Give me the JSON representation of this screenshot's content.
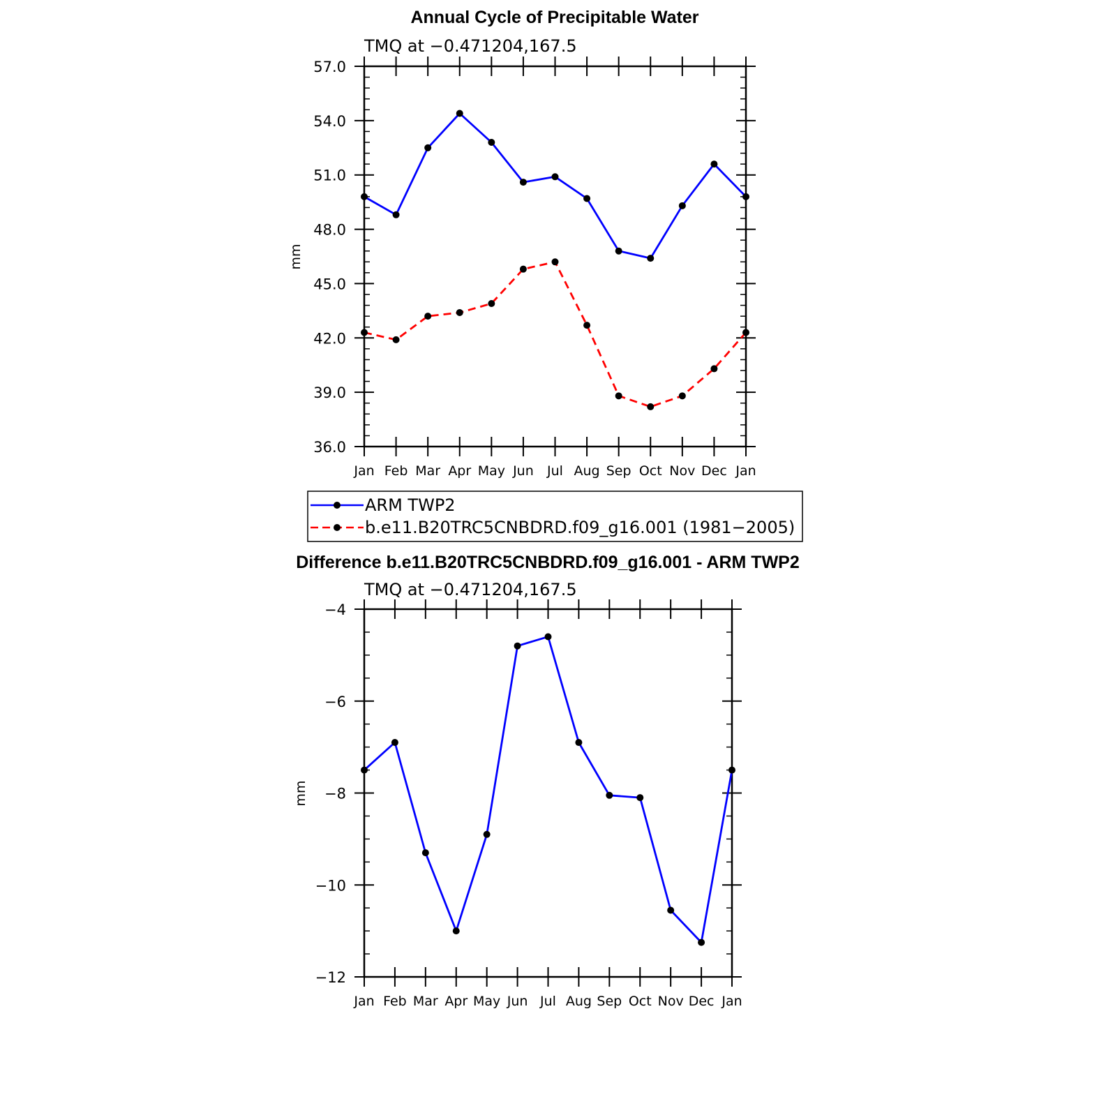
{
  "colors": {
    "ARM TWP2": "#0000ff",
    "model": "#ff0000",
    "marker": "#000000"
  },
  "chart_data": [
    {
      "type": "line",
      "title": "Annual Cycle of Precipitable Water",
      "subtitle": "TMQ at −0.471204,167.5",
      "ylabel": "mm",
      "ylim": [
        36.0,
        57.0
      ],
      "yticks": [
        "36.0",
        "39.0",
        "42.0",
        "45.0",
        "48.0",
        "51.0",
        "54.0",
        "57.0"
      ],
      "categories": [
        "Jan",
        "Feb",
        "Mar",
        "Apr",
        "May",
        "Jun",
        "Jul",
        "Aug",
        "Sep",
        "Oct",
        "Nov",
        "Dec",
        "Jan"
      ],
      "series": [
        {
          "name": "ARM TWP2",
          "style": "solid",
          "values": [
            49.8,
            48.8,
            52.5,
            54.4,
            52.8,
            50.6,
            50.9,
            49.7,
            46.8,
            46.4,
            49.3,
            51.6,
            49.8
          ]
        },
        {
          "name": "b.e11.B20TRC5CNBDRD.f09_g16.001 (1981−2005)",
          "style": "dashed",
          "values": [
            42.3,
            41.9,
            43.2,
            43.4,
            43.9,
            45.8,
            46.2,
            42.7,
            38.8,
            38.2,
            38.8,
            40.3,
            42.3
          ]
        }
      ],
      "legend": {
        "placement": "below"
      }
    },
    {
      "type": "line",
      "title": "Difference b.e11.B20TRC5CNBDRD.f09_g16.001 - ARM TWP2",
      "subtitle": "TMQ at −0.471204,167.5",
      "ylabel": "mm",
      "ylim": [
        -12,
        -4
      ],
      "yticks": [
        "−12",
        "−10",
        "−8",
        "−6",
        "−4"
      ],
      "categories": [
        "Jan",
        "Feb",
        "Mar",
        "Apr",
        "May",
        "Jun",
        "Jul",
        "Aug",
        "Sep",
        "Oct",
        "Nov",
        "Dec",
        "Jan"
      ],
      "series": [
        {
          "style": "solid",
          "values": [
            -7.5,
            -6.9,
            -9.3,
            -11.0,
            -8.9,
            -4.8,
            -4.6,
            -6.9,
            -8.05,
            -8.1,
            -10.55,
            -11.25,
            -7.5
          ]
        }
      ]
    }
  ]
}
